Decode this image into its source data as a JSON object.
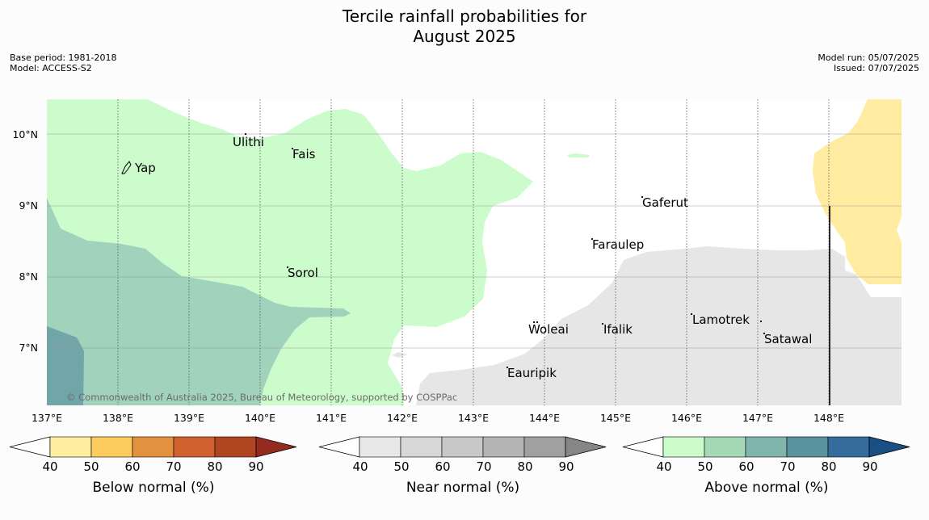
{
  "header": {
    "title_line1": "Tercile rainfall probabilities for",
    "title_line2": "August 2025",
    "base_period": "Base period: 1981-2018",
    "model": "Model: ACCESS-S2",
    "model_run": "Model run: 05/07/2025",
    "issued": "Issued: 07/07/2025"
  },
  "map": {
    "lat_labels": [
      "10°N",
      "9°N",
      "8°N",
      "7°N"
    ],
    "lon_labels": [
      "137°E",
      "138°E",
      "139°E",
      "140°E",
      "141°E",
      "142°E",
      "143°E",
      "144°E",
      "145°E",
      "146°E",
      "147°E",
      "148°E"
    ],
    "places": [
      "Ulithi",
      "Fais",
      "Yap",
      "Gaferut",
      "Faraulep",
      "Sorol",
      "Lamotrek",
      "Woleai",
      "Ifalik",
      "Satawal",
      "Eauripik"
    ],
    "credit": "© Commonwealth of Australia 2025, Bureau of Meteorology, supported by COSPPac",
    "colors": {
      "above_40_50": "#ccfccc",
      "above_50_60": "#a0d2bc",
      "above_60_70": "#71a5a8",
      "near_40_50": "#e6e6e6",
      "below_40_50": "#ffeca0"
    }
  },
  "colorbars": [
    {
      "label": "Below normal (%)",
      "ticks": [
        "40",
        "50",
        "60",
        "70",
        "80",
        "90"
      ],
      "colors": [
        "#ffeda0",
        "#fecb5e",
        "#e3913f",
        "#d0612f",
        "#b04522",
        "#942b1e"
      ]
    },
    {
      "label": "Near normal (%)",
      "ticks": [
        "40",
        "50",
        "60",
        "70",
        "80",
        "90"
      ],
      "colors": [
        "#e8e8e8",
        "#d7d7d7",
        "#c8c8c8",
        "#b4b4b4",
        "#a0a0a0",
        "#868686"
      ]
    },
    {
      "label": "Above normal (%)",
      "ticks": [
        "40",
        "50",
        "60",
        "70",
        "80",
        "90"
      ],
      "colors": [
        "#ccfcca",
        "#a6d8b7",
        "#80b5ae",
        "#5a92a0",
        "#346d9c",
        "#194f82"
      ]
    }
  ]
}
